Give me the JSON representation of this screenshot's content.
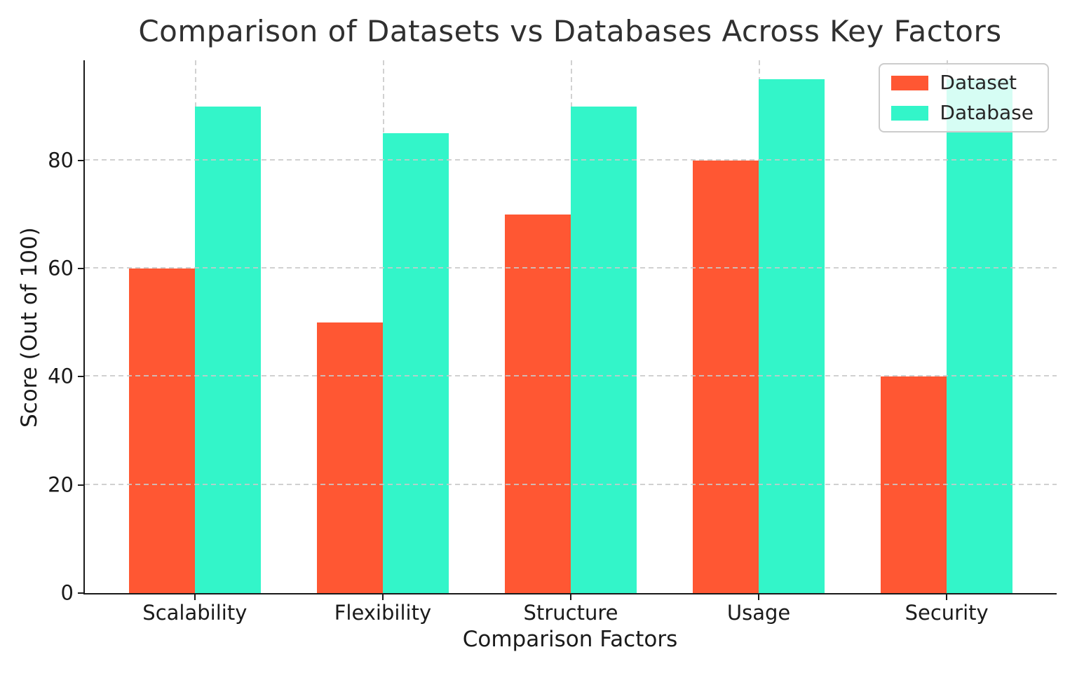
{
  "chart_data": {
    "type": "bar",
    "title": "Comparison of Datasets vs Databases Across Key Factors",
    "xlabel": "Comparison Factors",
    "ylabel": "Score (Out of 100)",
    "categories": [
      "Scalability",
      "Flexibility",
      "Structure",
      "Usage",
      "Security"
    ],
    "series": [
      {
        "name": "Dataset",
        "color": "#FF5733",
        "values": [
          60,
          50,
          70,
          80,
          40
        ]
      },
      {
        "name": "Database",
        "color": "#33F5C9",
        "values": [
          90,
          85,
          90,
          95,
          95
        ]
      }
    ],
    "yticks": [
      0,
      20,
      40,
      60,
      80
    ],
    "ylim": [
      0,
      98.5
    ],
    "xlim": [
      -0.585,
      4.585
    ],
    "bar_width": 0.35,
    "grid": true,
    "grid_style": "dashed",
    "legend_position": "upper right"
  }
}
